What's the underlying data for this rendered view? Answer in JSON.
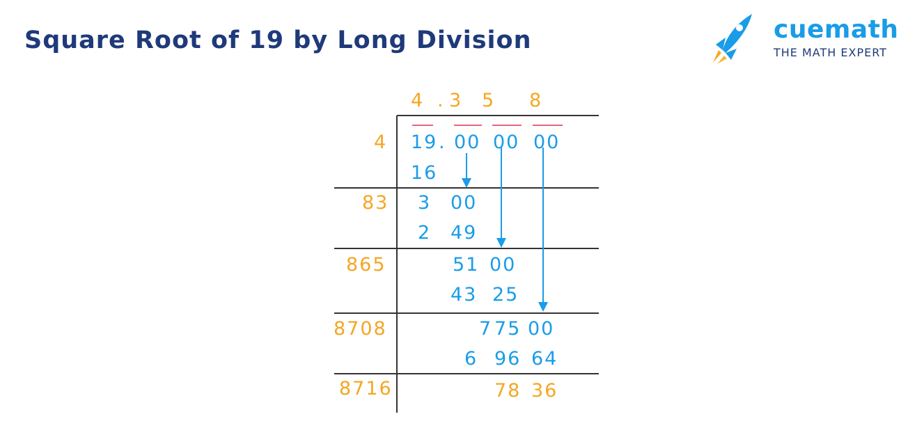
{
  "title": "Square Root of 19 by Long Division",
  "brand": {
    "name": "cuemath",
    "tagline": "THE MATH EXPERT",
    "rocket_icon": "rocket-icon"
  },
  "colors": {
    "title": "#1f3a7a",
    "digits": "#1a9ce8",
    "divisors": "#f5a623",
    "bars": "#e9657a",
    "lines": "#333333"
  },
  "quotient": [
    "4",
    ".",
    "3",
    "5",
    "8"
  ],
  "dividend": [
    "19",
    ".",
    "00",
    "00",
    "00"
  ],
  "divisors": [
    "4",
    "83",
    "865",
    "8708",
    "8716"
  ],
  "steps": [
    {
      "subtract": "16"
    },
    {
      "remainder": [
        "3",
        "00"
      ],
      "subtract": [
        "2",
        "49"
      ]
    },
    {
      "remainder": [
        "51",
        "00"
      ],
      "subtract": [
        "43",
        "25"
      ]
    },
    {
      "remainder": [
        "7",
        "75",
        "00"
      ],
      "subtract": [
        "6",
        "96",
        "64"
      ]
    },
    {
      "remainder": [
        "78",
        "36"
      ]
    }
  ]
}
